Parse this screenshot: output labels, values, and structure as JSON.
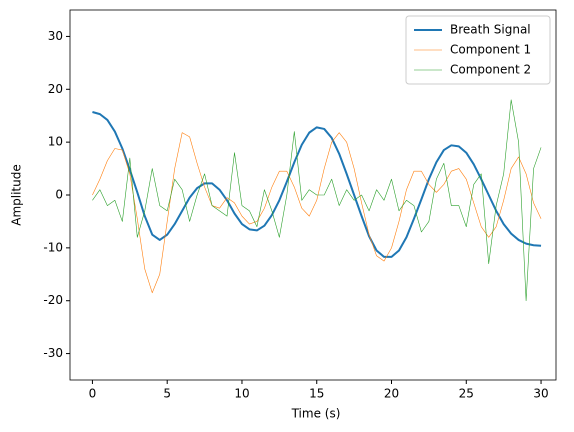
{
  "chart_data": {
    "type": "line",
    "xlabel": "Time (s)",
    "ylabel": "Amplitude",
    "x": [
      0,
      0.5,
      1,
      1.5,
      2,
      2.5,
      3,
      3.5,
      4,
      4.5,
      5,
      5.5,
      6,
      6.5,
      7,
      7.5,
      8,
      8.5,
      9,
      9.5,
      10,
      10.5,
      11,
      11.5,
      12,
      12.5,
      13,
      13.5,
      14,
      14.5,
      15,
      15.5,
      16,
      16.5,
      17,
      17.5,
      18,
      18.5,
      19,
      19.5,
      20,
      20.5,
      21,
      21.5,
      22,
      22.5,
      23,
      23.5,
      24,
      24.5,
      25,
      25.5,
      26,
      26.5,
      27,
      27.5,
      28,
      28.5,
      29,
      29.5,
      30
    ],
    "series": [
      {
        "name": "Breath Signal",
        "color": "#1f77b4",
        "linewidth": 2,
        "values": [
          15.7,
          15.3,
          14.2,
          12,
          8.8,
          4.8,
          0.5,
          -4,
          -7.5,
          -8.5,
          -7.5,
          -5.5,
          -3,
          -0.5,
          1.3,
          2.2,
          2.2,
          1,
          -1,
          -3.5,
          -5.5,
          -6.5,
          -6.7,
          -5.8,
          -3.8,
          -1,
          2.5,
          6.2,
          9.5,
          11.8,
          12.8,
          12.5,
          10.8,
          7.8,
          4,
          0,
          -4,
          -7.8,
          -10.5,
          -11.7,
          -11.7,
          -10.5,
          -8,
          -4.5,
          -0.8,
          3,
          6.2,
          8.5,
          9.4,
          9.2,
          8,
          5.8,
          3,
          0,
          -3,
          -5.5,
          -7.3,
          -8.5,
          -9.2,
          -9.5,
          -9.6
        ]
      },
      {
        "name": "Component 1",
        "color": "#ff7f0e",
        "linewidth": 0.6,
        "values": [
          0,
          3,
          6.5,
          8.8,
          8.5,
          4,
          -4.5,
          -14,
          -18.5,
          -15,
          -5,
          5,
          11.8,
          11,
          6,
          1.5,
          -2,
          -2.5,
          -0.5,
          -1.5,
          -4,
          -5.5,
          -5,
          -2.5,
          1.5,
          4.5,
          4.5,
          1.5,
          -2.5,
          -4,
          -1,
          5,
          10,
          11.8,
          10,
          5,
          -1.5,
          -7.5,
          -11.5,
          -12.5,
          -10,
          -5,
          1,
          4.5,
          4.5,
          2,
          0.5,
          2,
          4.5,
          5,
          3,
          -1.5,
          -6,
          -8,
          -6,
          -1,
          5,
          7.2,
          4,
          -1.5,
          -4.5
        ]
      },
      {
        "name": "Component 2",
        "color": "#2ca02c",
        "linewidth": 0.6,
        "values": [
          -1,
          1,
          -2,
          -1,
          -5,
          7,
          -8,
          -3,
          5,
          -2,
          -3,
          3,
          1,
          -5,
          0,
          4,
          -2,
          -3,
          -4,
          8,
          -2,
          -3,
          -6,
          1,
          -3,
          -8,
          0,
          12,
          -1,
          1,
          0,
          0,
          3,
          -2,
          1,
          -1,
          0,
          -3,
          1,
          -1,
          3,
          -3,
          -1,
          -2,
          -7,
          -5,
          3,
          6,
          -2,
          -2,
          -6,
          2,
          4,
          -13,
          -2,
          4,
          18,
          10,
          -20,
          5,
          9
        ]
      }
    ],
    "xlim": [
      -1.5,
      31
    ],
    "ylim": [
      -35,
      35
    ],
    "xticks": [
      0,
      5,
      10,
      15,
      20,
      25,
      30
    ],
    "yticks": [
      -30,
      -20,
      -10,
      0,
      10,
      20,
      30
    ],
    "grid": false,
    "legend": "upper right"
  }
}
